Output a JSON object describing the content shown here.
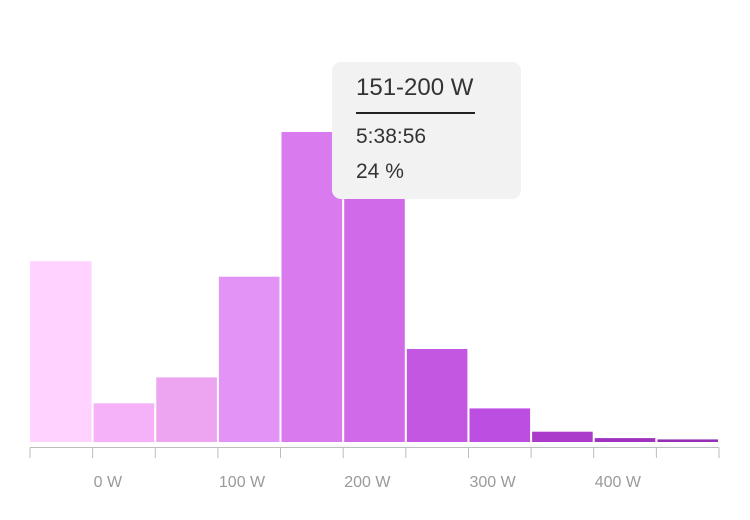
{
  "chart_data": {
    "type": "bar",
    "x_unit": "W",
    "bin_width": 50,
    "bins": [
      {
        "range": "< 0 W",
        "value": 14.0,
        "color": "#ffd2ff"
      },
      {
        "range": "0-50 W",
        "value": 3.0,
        "color": "#f5b2f8"
      },
      {
        "range": "51-100 W",
        "value": 5.0,
        "color": "#eda4f1"
      },
      {
        "range": "101-150 W",
        "value": 12.8,
        "color": "#e194f5"
      },
      {
        "range": "151-200 W",
        "value": 24.0,
        "color": "#d97bee"
      },
      {
        "range": "201-250 W",
        "value": 20.0,
        "color": "#d06ae9"
      },
      {
        "range": "251-300 W",
        "value": 7.2,
        "color": "#c457e1"
      },
      {
        "range": "301-350 W",
        "value": 2.6,
        "color": "#bd4ee2"
      },
      {
        "range": "351-400 W",
        "value": 0.8,
        "color": "#ab3bcb"
      },
      {
        "range": "401-450 W",
        "value": 0.3,
        "color": "#9f32bd"
      },
      {
        "range": "451-500 W",
        "value": 0.2,
        "color": "#962fb4"
      }
    ],
    "x_ticks": [
      {
        "value": 0,
        "label": "0 W"
      },
      {
        "value": 100,
        "label": "100 W"
      },
      {
        "value": 200,
        "label": "200 W"
      },
      {
        "value": 300,
        "label": "300 W"
      },
      {
        "value": 400,
        "label": "400 W"
      }
    ],
    "xlim": [
      -50,
      500
    ],
    "ylim": [
      0,
      24
    ],
    "grid": false,
    "legend": "none"
  },
  "tooltip": {
    "title": "151-200 W",
    "time": "5:38:56",
    "percent": "24 %"
  }
}
